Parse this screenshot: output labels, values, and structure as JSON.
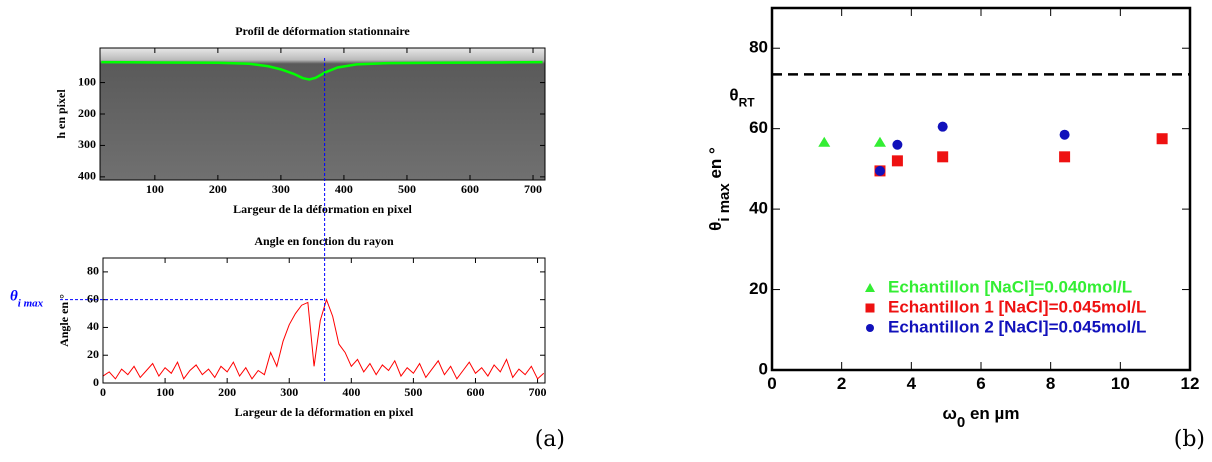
{
  "chart_data": [
    {
      "type": "image",
      "title": "Profil de déformation stationnaire",
      "xlabel": "Largeur de la déformation en pixel",
      "ylabel": "h en pixel",
      "xlim": [
        13,
        719
      ],
      "ylim": [
        -10,
        410
      ],
      "y_reversed": true,
      "xticks": [
        100,
        200,
        300,
        400,
        500,
        600,
        700
      ],
      "yticks": [
        100,
        200,
        300,
        400
      ],
      "grid": false,
      "series": [
        {
          "color": "#00ff00",
          "x": [
            15,
            100,
            200,
            250,
            280,
            300,
            320,
            335,
            345,
            355,
            370,
            390,
            420,
            470,
            550,
            650,
            715
          ],
          "values": [
            35,
            36,
            37,
            40,
            48,
            58,
            72,
            86,
            90,
            85,
            68,
            52,
            42,
            38,
            37,
            36,
            35
          ]
        }
      ]
    },
    {
      "type": "line",
      "title": "Angle en fonction du rayon",
      "xlabel": "Largeur de la déformation en pixel",
      "ylabel": "Angle en °",
      "xlim": [
        0,
        712
      ],
      "ylim": [
        0,
        90
      ],
      "xticks": [
        0,
        100,
        200,
        300,
        400,
        500,
        600,
        700
      ],
      "yticks": [
        0,
        20,
        40,
        60,
        80
      ],
      "grid": false,
      "annotation": {
        "x": 357,
        "y": 60,
        "label": "θ",
        "label_sub": "i max",
        "color": "#0000ff"
      },
      "panel_label": "(a)",
      "series": [
        {
          "color": "#ff0000",
          "x": [
            0,
            10,
            20,
            30,
            40,
            50,
            60,
            70,
            80,
            90,
            100,
            110,
            120,
            130,
            140,
            150,
            160,
            170,
            180,
            190,
            200,
            210,
            220,
            230,
            240,
            250,
            260,
            270,
            280,
            290,
            300,
            310,
            320,
            330,
            340,
            350,
            360,
            370,
            380,
            390,
            400,
            410,
            420,
            430,
            440,
            450,
            460,
            470,
            480,
            490,
            500,
            510,
            520,
            530,
            540,
            550,
            560,
            570,
            580,
            590,
            600,
            610,
            620,
            630,
            640,
            650,
            660,
            670,
            680,
            690,
            700,
            710
          ],
          "values": [
            5,
            8,
            3,
            10,
            6,
            12,
            4,
            9,
            14,
            5,
            11,
            7,
            15,
            3,
            9,
            13,
            6,
            10,
            4,
            12,
            8,
            15,
            5,
            11,
            3,
            9,
            6,
            22,
            12,
            30,
            42,
            50,
            56,
            58,
            12,
            45,
            60,
            48,
            28,
            22,
            12,
            17,
            8,
            14,
            6,
            13,
            9,
            16,
            5,
            11,
            7,
            14,
            4,
            10,
            16,
            6,
            12,
            3,
            9,
            15,
            7,
            11,
            5,
            13,
            8,
            17,
            4,
            10,
            6,
            12,
            3,
            7
          ]
        }
      ]
    },
    {
      "type": "scatter",
      "xlabel": "ω",
      "xlabel_sub": "0",
      "xlabel_rest": " en µm",
      "ylabel": "θ",
      "ylabel_sub": "i max",
      "ylabel_rest": " en °",
      "xlim": [
        0,
        12
      ],
      "ylim": [
        0,
        90
      ],
      "xticks": [
        0,
        2,
        4,
        6,
        8,
        10,
        12
      ],
      "yticks": [
        0,
        20,
        40,
        60,
        80
      ],
      "grid": false,
      "legend": "lower right",
      "hline": {
        "value": 73.5,
        "label": "θ",
        "label_sub": "RT",
        "color": "#000000"
      },
      "panel_label": "(b)",
      "series": [
        {
          "name": "Echantillon [NaCl]=0.040mol/L",
          "color": "#33ee33",
          "marker": "triangle",
          "x": [
            1.5,
            3.1
          ],
          "values": [
            56.5,
            56.5
          ]
        },
        {
          "name": "Echantillon 1 [NaCl]=0.045mol/L",
          "color": "#ee1111",
          "marker": "square",
          "x": [
            3.1,
            3.6,
            4.9,
            8.4,
            11.2
          ],
          "values": [
            49.5,
            52,
            53,
            53,
            57.5
          ]
        },
        {
          "name": "Echantillon 2 [NaCl]=0.045mol/L",
          "color": "#1111bb",
          "marker": "circle",
          "x": [
            3.1,
            3.6,
            4.9,
            8.4
          ],
          "values": [
            49.5,
            56,
            60.5,
            58.5
          ]
        }
      ]
    }
  ]
}
